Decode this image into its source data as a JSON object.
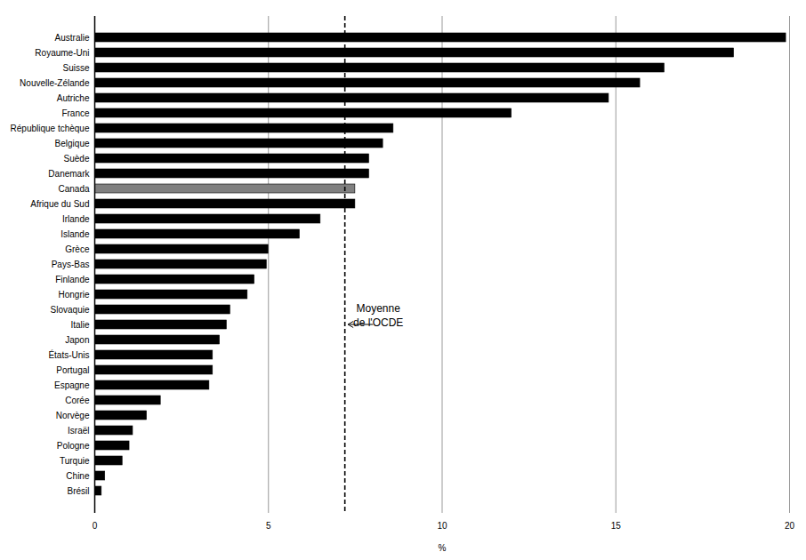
{
  "chart_data": {
    "type": "bar",
    "orientation": "horizontal",
    "categories": [
      "Australie",
      "Royaume-Uni",
      "Suisse",
      "Nouvelle-Zélande",
      "Autriche",
      "France",
      "République tchèque",
      "Belgique",
      "Suède",
      "Danemark",
      "Canada",
      "Afrique du Sud",
      "Irlande",
      "Islande",
      "Grèce",
      "Pays-Bas",
      "Finlande",
      "Hongrie",
      "Slovaquie",
      "Italie",
      "Japon",
      "États-Unis",
      "Portugal",
      "Espagne",
      "Corée",
      "Norvège",
      "Israël",
      "Pologne",
      "Turquie",
      "Chine",
      "Brésil"
    ],
    "values": [
      19.9,
      18.4,
      16.4,
      15.7,
      14.8,
      12.0,
      8.6,
      8.3,
      7.9,
      7.9,
      7.5,
      7.5,
      6.5,
      5.9,
      5.0,
      4.95,
      4.6,
      4.4,
      3.9,
      3.8,
      3.6,
      3.4,
      3.4,
      3.3,
      1.9,
      1.5,
      1.1,
      1.0,
      0.8,
      0.3,
      0.2
    ],
    "colors": [
      "#000000",
      "#000000",
      "#000000",
      "#000000",
      "#000000",
      "#000000",
      "#000000",
      "#000000",
      "#000000",
      "#000000",
      "#808080",
      "#000000",
      "#000000",
      "#000000",
      "#000000",
      "#000000",
      "#000000",
      "#000000",
      "#000000",
      "#000000",
      "#000000",
      "#000000",
      "#000000",
      "#000000",
      "#000000",
      "#000000",
      "#000000",
      "#000000",
      "#000000",
      "#000000",
      "#000000"
    ],
    "x_label": "%",
    "xlim": [
      0,
      20
    ],
    "xticks": [
      0,
      5,
      10,
      15,
      20
    ],
    "grid": true,
    "reference_lines": [
      {
        "value": 7.2,
        "label": "Moyenne de l'OCDE"
      }
    ]
  }
}
